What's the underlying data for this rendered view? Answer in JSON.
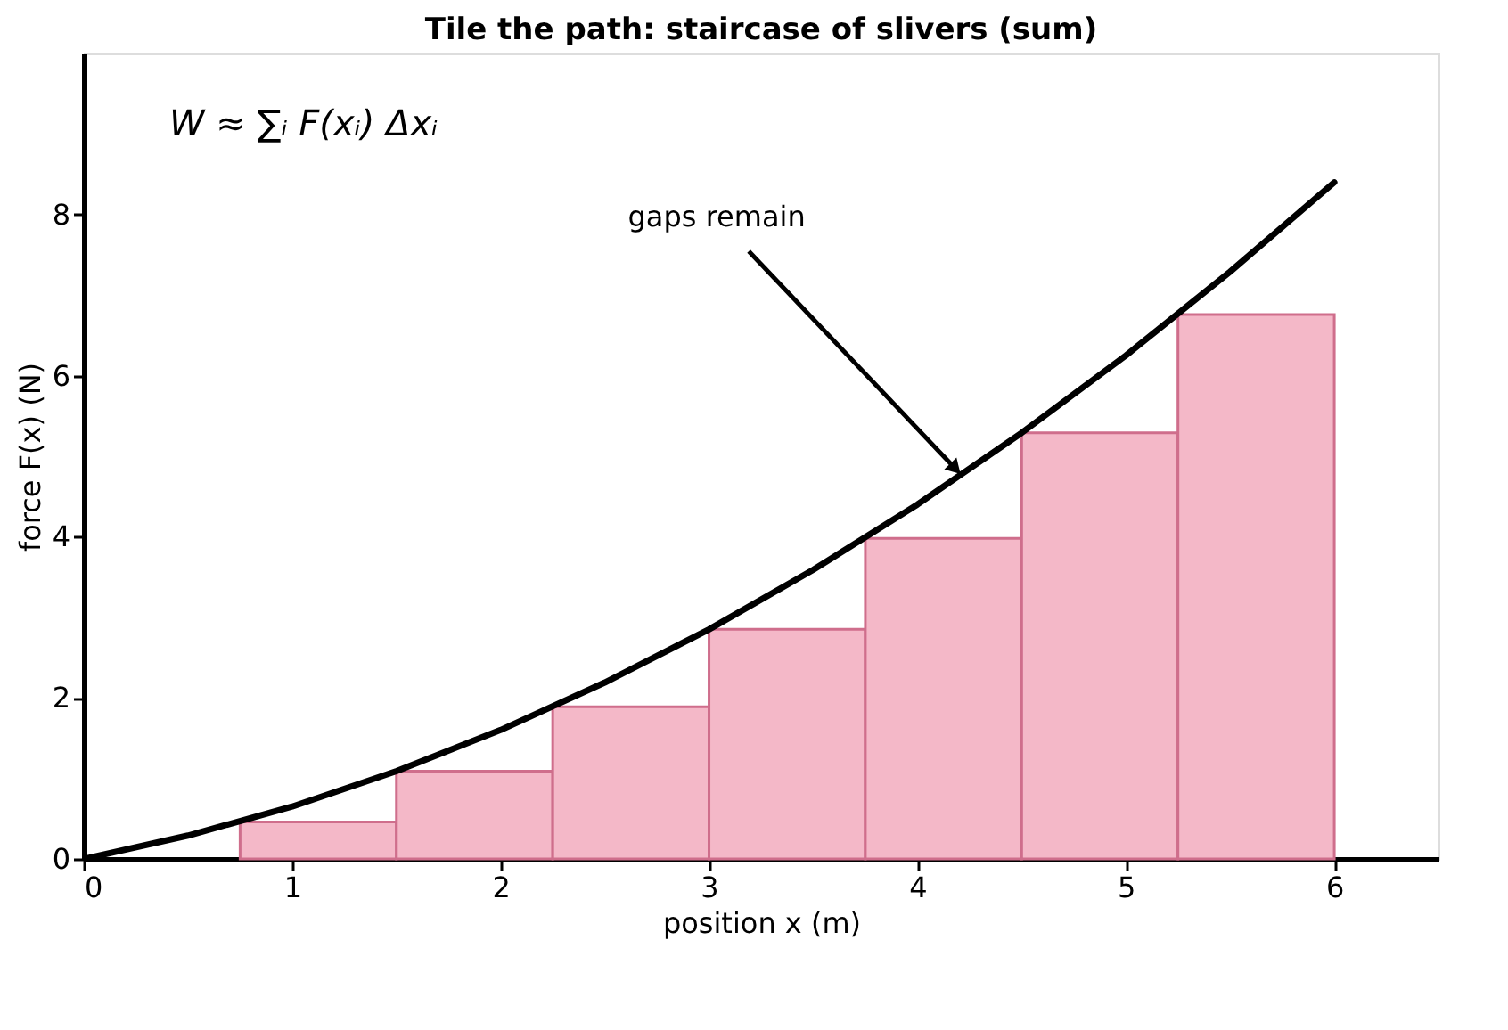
{
  "chart_data": {
    "type": "line",
    "title": "Tile the path: staircase of slivers (sum)",
    "xlabel": "position x  (m)",
    "ylabel": "force F(x)  (N)",
    "xlim": [
      0,
      6.5
    ],
    "xticks": [
      0,
      1,
      2,
      3,
      4,
      5,
      6
    ],
    "ylim": [
      0,
      10
    ],
    "yticks": [
      0,
      2,
      4,
      6,
      8
    ],
    "line_style": "solid",
    "annotations": [
      "W ≈ ∑ᵢ F(xᵢ) Δxᵢ",
      {
        "text": "gaps remain",
        "x": 4.2,
        "y": 4.8
      }
    ],
    "series": [
      {
        "type": "histogram",
        "color": "#f4b8c8",
        "bins": [
          0.75,
          1.5,
          2.25,
          3,
          3.75,
          4.5,
          5.25,
          6
        ],
        "values": [
          0.46,
          1.09,
          1.89,
          2.85,
          3.98,
          5.29,
          6.76
        ]
      },
      {
        "color": "#000000",
        "x": [
          0,
          0.5,
          1,
          1.5,
          2,
          2.5,
          3,
          3.5,
          4,
          4.5,
          5,
          5.5,
          6
        ],
        "values": [
          0,
          0.29,
          0.65,
          1.09,
          1.6,
          2.19,
          2.85,
          3.59,
          4.4,
          5.29,
          6.25,
          7.29,
          8.4
        ]
      }
    ]
  }
}
